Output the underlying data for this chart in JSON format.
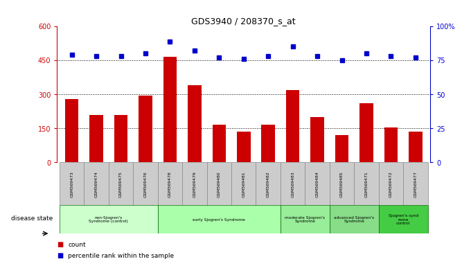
{
  "title": "GDS3940 / 208370_s_at",
  "samples": [
    "GSM569473",
    "GSM569474",
    "GSM569475",
    "GSM569476",
    "GSM569478",
    "GSM569479",
    "GSM569480",
    "GSM569481",
    "GSM569482",
    "GSM569483",
    "GSM569484",
    "GSM569485",
    "GSM569471",
    "GSM569472",
    "GSM569477"
  ],
  "counts": [
    280,
    210,
    210,
    295,
    465,
    340,
    165,
    135,
    165,
    320,
    200,
    120,
    260,
    155,
    135
  ],
  "percentiles": [
    79,
    78,
    78,
    80,
    89,
    82,
    77,
    76,
    78,
    85,
    78,
    75,
    80,
    78,
    77
  ],
  "bar_color": "#cc0000",
  "dot_color": "#0000cc",
  "ylim_left": [
    0,
    600
  ],
  "ylim_right": [
    0,
    100
  ],
  "yticks_left": [
    0,
    150,
    300,
    450,
    600
  ],
  "yticks_right": [
    0,
    25,
    50,
    75,
    100
  ],
  "groups": [
    {
      "label": "non-Sjogren's\nSyndrome (control)",
      "start": 0,
      "end": 4,
      "color": "#ccffcc"
    },
    {
      "label": "early Sjogren's Syndrome",
      "start": 4,
      "end": 9,
      "color": "#aaffaa"
    },
    {
      "label": "moderate Sjogren's\nSyndrome",
      "start": 9,
      "end": 11,
      "color": "#99ee99"
    },
    {
      "label": "advanced Sjogren's\nSyndrome",
      "start": 11,
      "end": 13,
      "color": "#88dd88"
    },
    {
      "label": "Sjogren's synd\nrome\ncontrol",
      "start": 13,
      "end": 15,
      "color": "#44cc44"
    }
  ],
  "bg_color": "#ffffff",
  "tick_area_color": "#cccccc",
  "group_colors": [
    "#ccffcc",
    "#aaffaa",
    "#99ee99",
    "#88dd88",
    "#44cc44"
  ]
}
